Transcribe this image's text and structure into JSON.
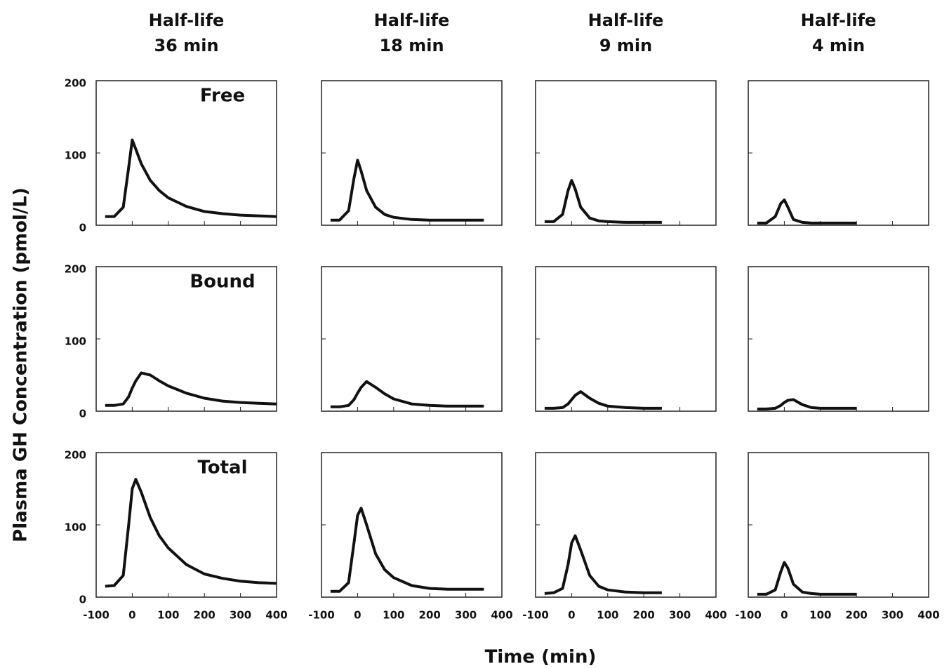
{
  "columns": [
    {
      "title": "Half-life",
      "subtitle": "36 min"
    },
    {
      "title": "Half-life",
      "subtitle": "18 min"
    },
    {
      "title": "Half-life",
      "subtitle": "9 min"
    },
    {
      "title": "Half-life",
      "subtitle": "4 min"
    }
  ],
  "row_labels": [
    "Free",
    "Bound",
    "Total"
  ],
  "y_label": "Plasma GH Concentration (pmol/L)",
  "x_label": "Time (min)",
  "chart_data": [
    {
      "type": "line",
      "color": "#111111",
      "xlim": [
        -100,
        400
      ],
      "ylim": [
        0,
        200
      ],
      "xticks": [
        -100,
        0,
        100,
        200,
        300,
        400
      ],
      "yticks": [
        0,
        100,
        200
      ],
      "x": [
        -75,
        -50,
        -25,
        -10,
        0,
        10,
        25,
        50,
        75,
        100,
        150,
        200,
        250,
        300,
        350,
        400
      ],
      "values": [
        12,
        12,
        25,
        80,
        118,
        105,
        85,
        62,
        48,
        38,
        26,
        19,
        16,
        14,
        13,
        12
      ]
    },
    {
      "type": "line",
      "color": "#111111",
      "xlim": [
        -100,
        400
      ],
      "ylim": [
        0,
        200
      ],
      "xticks": [
        -100,
        0,
        100,
        200,
        300,
        400
      ],
      "yticks": [
        0,
        100,
        200
      ],
      "x": [
        -75,
        -50,
        -25,
        -10,
        0,
        10,
        25,
        50,
        75,
        100,
        150,
        200,
        250,
        300,
        350
      ],
      "values": [
        7,
        7,
        20,
        65,
        90,
        75,
        48,
        25,
        15,
        11,
        8,
        7,
        7,
        7,
        7
      ]
    },
    {
      "type": "line",
      "color": "#111111",
      "xlim": [
        -100,
        400
      ],
      "ylim": [
        0,
        200
      ],
      "xticks": [
        -100,
        0,
        100,
        200,
        300,
        400
      ],
      "yticks": [
        0,
        100,
        200
      ],
      "x": [
        -75,
        -50,
        -25,
        -10,
        0,
        10,
        25,
        50,
        75,
        100,
        150,
        200,
        250
      ],
      "values": [
        5,
        5,
        15,
        48,
        62,
        50,
        25,
        10,
        6,
        5,
        4,
        4,
        4
      ]
    },
    {
      "type": "line",
      "color": "#111111",
      "xlim": [
        -100,
        400
      ],
      "ylim": [
        0,
        200
      ],
      "xticks": [
        -100,
        0,
        100,
        200,
        300,
        400
      ],
      "yticks": [
        0,
        100,
        200
      ],
      "x": [
        -75,
        -50,
        -25,
        -10,
        0,
        10,
        25,
        50,
        75,
        100,
        150,
        200
      ],
      "values": [
        3,
        3,
        12,
        30,
        35,
        25,
        8,
        4,
        3,
        3,
        3,
        3
      ]
    },
    {
      "type": "line",
      "color": "#111111",
      "xlim": [
        -100,
        400
      ],
      "ylim": [
        0,
        200
      ],
      "xticks": [
        -100,
        0,
        100,
        200,
        300,
        400
      ],
      "yticks": [
        0,
        100,
        200
      ],
      "x": [
        -75,
        -50,
        -25,
        -10,
        0,
        10,
        25,
        50,
        75,
        100,
        150,
        200,
        250,
        300,
        350,
        400
      ],
      "values": [
        8,
        8,
        10,
        20,
        32,
        42,
        53,
        50,
        42,
        35,
        25,
        18,
        14,
        12,
        11,
        10
      ]
    },
    {
      "type": "line",
      "color": "#111111",
      "xlim": [
        -100,
        400
      ],
      "ylim": [
        0,
        200
      ],
      "xticks": [
        -100,
        0,
        100,
        200,
        300,
        400
      ],
      "yticks": [
        0,
        100,
        200
      ],
      "x": [
        -75,
        -50,
        -25,
        -10,
        0,
        10,
        25,
        50,
        75,
        100,
        150,
        200,
        250,
        300,
        350
      ],
      "values": [
        6,
        6,
        8,
        16,
        25,
        33,
        41,
        33,
        24,
        17,
        10,
        8,
        7,
        7,
        7
      ]
    },
    {
      "type": "line",
      "color": "#111111",
      "xlim": [
        -100,
        400
      ],
      "ylim": [
        0,
        200
      ],
      "xticks": [
        -100,
        0,
        100,
        200,
        300,
        400
      ],
      "yticks": [
        0,
        100,
        200
      ],
      "x": [
        -75,
        -50,
        -25,
        -10,
        0,
        10,
        25,
        50,
        75,
        100,
        150,
        200,
        250
      ],
      "values": [
        4,
        4,
        5,
        10,
        16,
        22,
        27,
        18,
        11,
        7,
        5,
        4,
        4
      ]
    },
    {
      "type": "line",
      "color": "#111111",
      "xlim": [
        -100,
        400
      ],
      "ylim": [
        0,
        200
      ],
      "xticks": [
        -100,
        0,
        100,
        200,
        300,
        400
      ],
      "yticks": [
        0,
        100,
        200
      ],
      "x": [
        -75,
        -50,
        -25,
        -10,
        0,
        10,
        25,
        50,
        75,
        100,
        150,
        200
      ],
      "values": [
        3,
        3,
        4,
        8,
        12,
        15,
        16,
        9,
        5,
        4,
        4,
        4
      ]
    },
    {
      "type": "line",
      "color": "#111111",
      "xlim": [
        -100,
        400
      ],
      "ylim": [
        0,
        200
      ],
      "xticks": [
        -100,
        0,
        100,
        200,
        300,
        400
      ],
      "yticks": [
        0,
        100,
        200
      ],
      "x": [
        -75,
        -50,
        -25,
        -10,
        0,
        10,
        25,
        50,
        75,
        100,
        150,
        200,
        250,
        300,
        350,
        400
      ],
      "values": [
        15,
        16,
        30,
        100,
        150,
        163,
        145,
        110,
        85,
        68,
        45,
        32,
        26,
        22,
        20,
        19
      ]
    },
    {
      "type": "line",
      "color": "#111111",
      "xlim": [
        -100,
        400
      ],
      "ylim": [
        0,
        200
      ],
      "xticks": [
        -100,
        0,
        100,
        200,
        300,
        400
      ],
      "yticks": [
        0,
        100,
        200
      ],
      "x": [
        -75,
        -50,
        -25,
        -10,
        0,
        10,
        25,
        50,
        75,
        100,
        150,
        200,
        250,
        300,
        350
      ],
      "values": [
        8,
        8,
        20,
        75,
        113,
        123,
        100,
        60,
        38,
        27,
        16,
        12,
        11,
        11,
        11
      ]
    },
    {
      "type": "line",
      "color": "#111111",
      "xlim": [
        -100,
        400
      ],
      "ylim": [
        0,
        200
      ],
      "xticks": [
        -100,
        0,
        100,
        200,
        300,
        400
      ],
      "yticks": [
        0,
        100,
        200
      ],
      "x": [
        -75,
        -50,
        -25,
        -10,
        0,
        10,
        25,
        50,
        75,
        100,
        150,
        200,
        250
      ],
      "values": [
        5,
        6,
        12,
        45,
        75,
        85,
        65,
        30,
        15,
        10,
        7,
        6,
        6
      ]
    },
    {
      "type": "line",
      "color": "#111111",
      "xlim": [
        -100,
        400
      ],
      "ylim": [
        0,
        200
      ],
      "xticks": [
        -100,
        0,
        100,
        200,
        300,
        400
      ],
      "yticks": [
        0,
        100,
        200
      ],
      "x": [
        -75,
        -50,
        -25,
        -10,
        0,
        10,
        25,
        50,
        75,
        100,
        150,
        200
      ],
      "values": [
        4,
        4,
        10,
        35,
        48,
        40,
        18,
        7,
        5,
        4,
        4,
        4
      ]
    }
  ]
}
